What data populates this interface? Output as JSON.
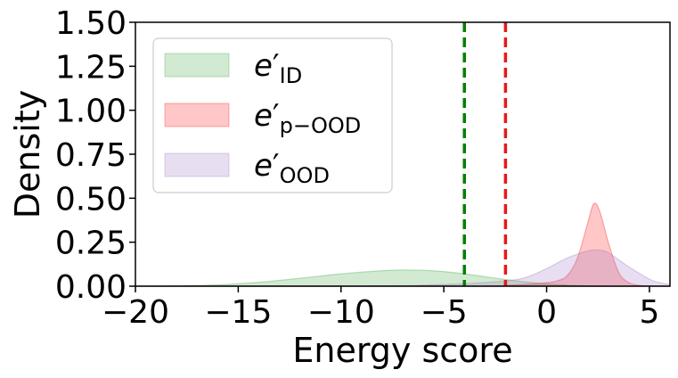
{
  "chart_data": {
    "type": "area",
    "title": "",
    "xlabel": "Energy score",
    "ylabel": "Density",
    "xlim": [
      -20,
      6
    ],
    "ylim": [
      0,
      1.5
    ],
    "x_ticks": [
      -20,
      -15,
      -10,
      -5,
      0,
      5
    ],
    "x_tick_labels": [
      "−20",
      "−15",
      "−10",
      "−5",
      "0",
      "5"
    ],
    "y_ticks": [
      0,
      0.25,
      0.5,
      0.75,
      1.0,
      1.25,
      1.5
    ],
    "y_tick_labels": [
      "0.00",
      "0.25",
      "0.50",
      "0.75",
      "1.00",
      "1.25",
      "1.50"
    ],
    "grid": false,
    "legend_position": "top-left",
    "series": [
      {
        "name": "e′ID",
        "legend": {
          "base": "e",
          "prime": "′",
          "sub": "ID"
        },
        "color": "#2ca02c",
        "x": [
          -20,
          -18,
          -16,
          -14,
          -12,
          -10,
          -8,
          -7,
          -6,
          -5,
          -4,
          -3,
          -2,
          -1,
          0,
          1,
          2,
          3,
          4,
          5,
          6
        ],
        "values": [
          0.0,
          0.002,
          0.008,
          0.022,
          0.045,
          0.07,
          0.088,
          0.092,
          0.09,
          0.083,
          0.07,
          0.054,
          0.038,
          0.024,
          0.013,
          0.006,
          0.002,
          0.0,
          0.0,
          0.0,
          0.0
        ]
      },
      {
        "name": "e′p−OOD",
        "legend": {
          "base": "e",
          "prime": "′",
          "sub": "p−OOD"
        },
        "color": "#ff0000",
        "x": [
          -20,
          -4,
          -2,
          -1,
          0,
          0.5,
          1,
          1.5,
          2,
          2.3,
          2.6,
          3,
          3.5,
          4,
          4.5,
          5,
          6
        ],
        "values": [
          0.0,
          0.0,
          0.005,
          0.01,
          0.02,
          0.03,
          0.06,
          0.16,
          0.36,
          0.47,
          0.42,
          0.25,
          0.08,
          0.02,
          0.005,
          0.001,
          0.0
        ]
      },
      {
        "name": "e′OOD",
        "legend": {
          "base": "e",
          "prime": "′",
          "sub": "OOD"
        },
        "color": "#9467bd",
        "x": [
          -20,
          -8,
          -6,
          -4,
          -2,
          -1,
          0,
          1,
          2,
          2.5,
          3,
          4,
          5,
          5.5,
          6
        ],
        "values": [
          0.0,
          0.002,
          0.006,
          0.014,
          0.03,
          0.05,
          0.1,
          0.16,
          0.2,
          0.205,
          0.19,
          0.11,
          0.04,
          0.02,
          0.01
        ]
      }
    ],
    "vlines": [
      {
        "x": -4.0,
        "color": "#008000",
        "style": "dashed"
      },
      {
        "x": -2.0,
        "color": "#e41a1c",
        "style": "dashed"
      }
    ]
  }
}
